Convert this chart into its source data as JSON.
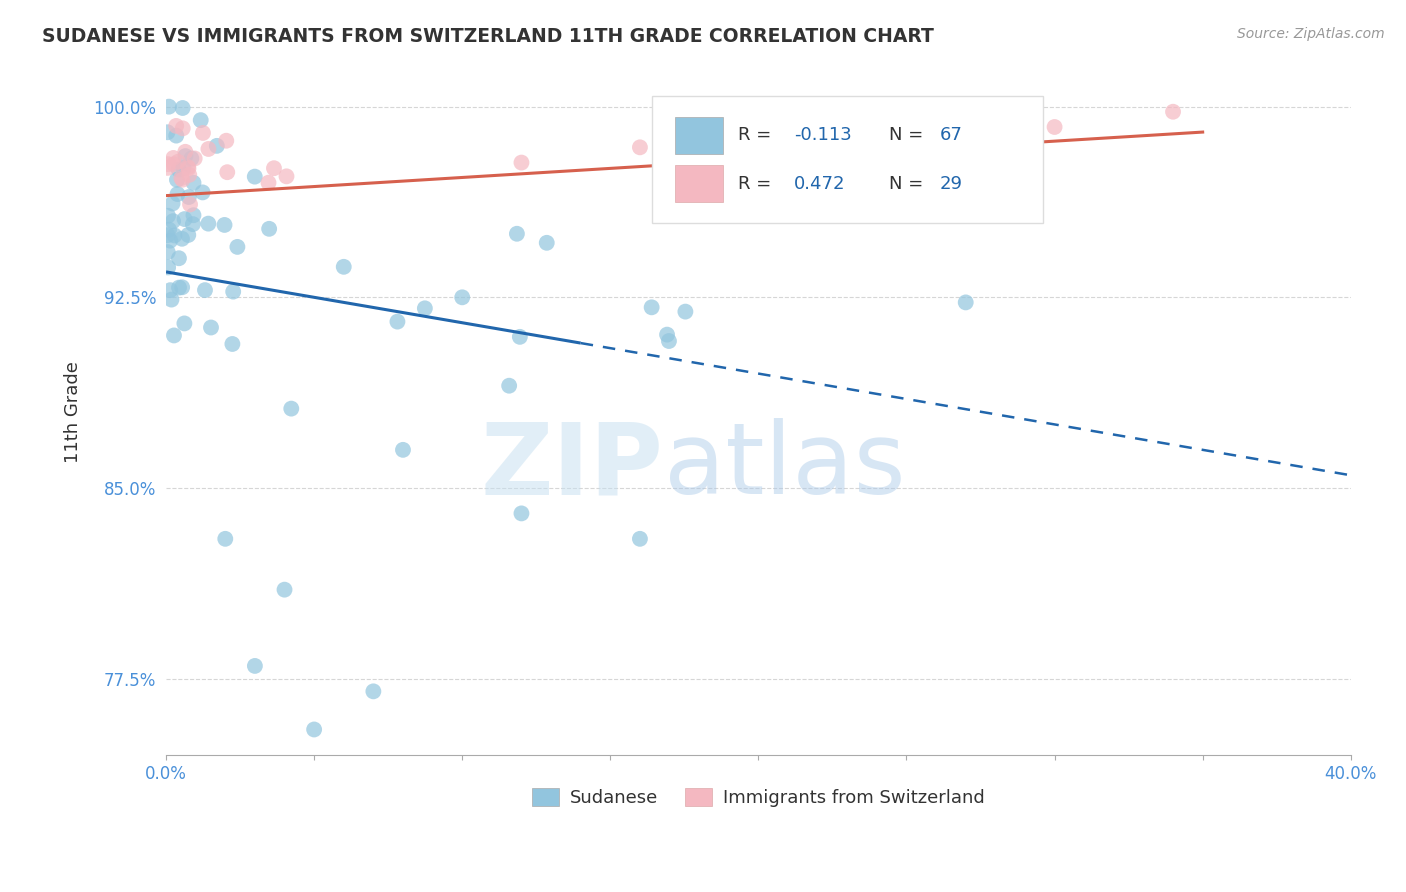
{
  "title": "SUDANESE VS IMMIGRANTS FROM SWITZERLAND 11TH GRADE CORRELATION CHART",
  "source_text": "Source: ZipAtlas.com",
  "ylabel": "11th Grade",
  "xlim": [
    0.0,
    0.4
  ],
  "ylim": [
    0.745,
    1.015
  ],
  "xticks": [
    0.0,
    0.05,
    0.1,
    0.15,
    0.2,
    0.25,
    0.3,
    0.35,
    0.4
  ],
  "xticklabels_sparse": {
    "0": "0.0%",
    "8": "40.0%"
  },
  "yticks": [
    0.775,
    0.85,
    0.925,
    1.0
  ],
  "yticklabels": [
    "77.5%",
    "85.0%",
    "92.5%",
    "100.0%"
  ],
  "blue_color": "#92c5de",
  "pink_color": "#f4b8c1",
  "blue_line_color": "#2166ac",
  "pink_line_color": "#d6604d",
  "R_blue": -0.113,
  "N_blue": 67,
  "R_pink": 0.472,
  "N_pink": 29,
  "watermark_zip": "ZIP",
  "watermark_atlas": "atlas",
  "legend_label_blue": "Sudanese",
  "legend_label_pink": "Immigrants from Switzerland",
  "blue_line_x0": 0.0,
  "blue_line_x1": 0.4,
  "blue_line_y0": 0.935,
  "blue_line_y1": 0.855,
  "blue_line_solid_end": 0.14,
  "pink_line_x0": 0.0,
  "pink_line_x1": 0.35,
  "pink_line_y0": 0.965,
  "pink_line_y1": 0.99,
  "grid_color": "#cccccc",
  "tick_color": "#aaaaaa"
}
